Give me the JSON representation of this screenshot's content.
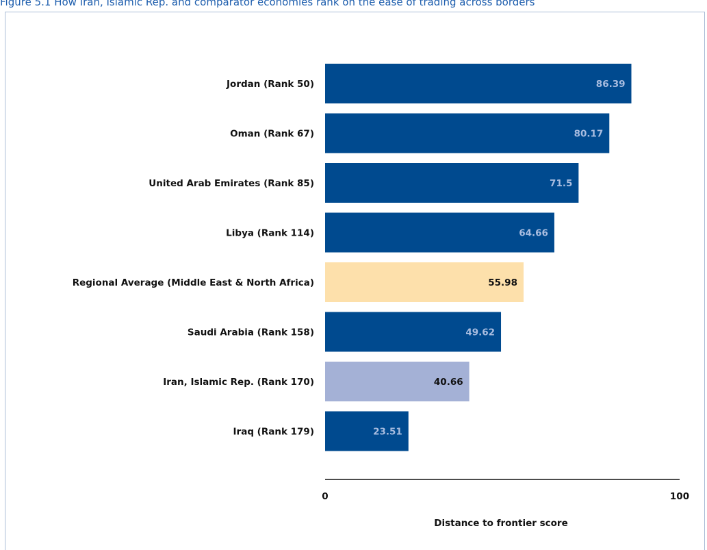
{
  "caption": "Figure 5.1 How Iran, Islamic Rep. and comparator economies rank on the ease of trading across borders",
  "chart_data": {
    "type": "bar",
    "orientation": "horizontal",
    "categories": [
      "Jordan (Rank 50)",
      "Oman (Rank 67)",
      "United Arab Emirates (Rank 85)",
      "Libya (Rank 114)",
      "Regional Average (Middle East & North Africa)",
      "Saudi Arabia (Rank 158)",
      "Iran, Islamic Rep. (Rank 170)",
      "Iraq (Rank 179)"
    ],
    "values": [
      86.39,
      80.17,
      71.5,
      64.66,
      55.98,
      49.62,
      40.66,
      23.51
    ],
    "value_labels": [
      "86.39",
      "80.17",
      "71.5",
      "64.66",
      "55.98",
      "49.62",
      "40.66",
      "23.51"
    ],
    "bar_colors": [
      "#004a8f",
      "#004a8f",
      "#004a8f",
      "#004a8f",
      "#fde0ab",
      "#004a8f",
      "#a4b1d6",
      "#004a8f"
    ],
    "label_colors": [
      "#a9bde0",
      "#a9bde0",
      "#a9bde0",
      "#a9bde0",
      "#111111",
      "#a9bde0",
      "#111111",
      "#a9bde0"
    ],
    "xlim": [
      0,
      100
    ],
    "x_ticks": [
      "0",
      "100"
    ],
    "xlabel": "Distance to frontier score",
    "grid": false
  }
}
